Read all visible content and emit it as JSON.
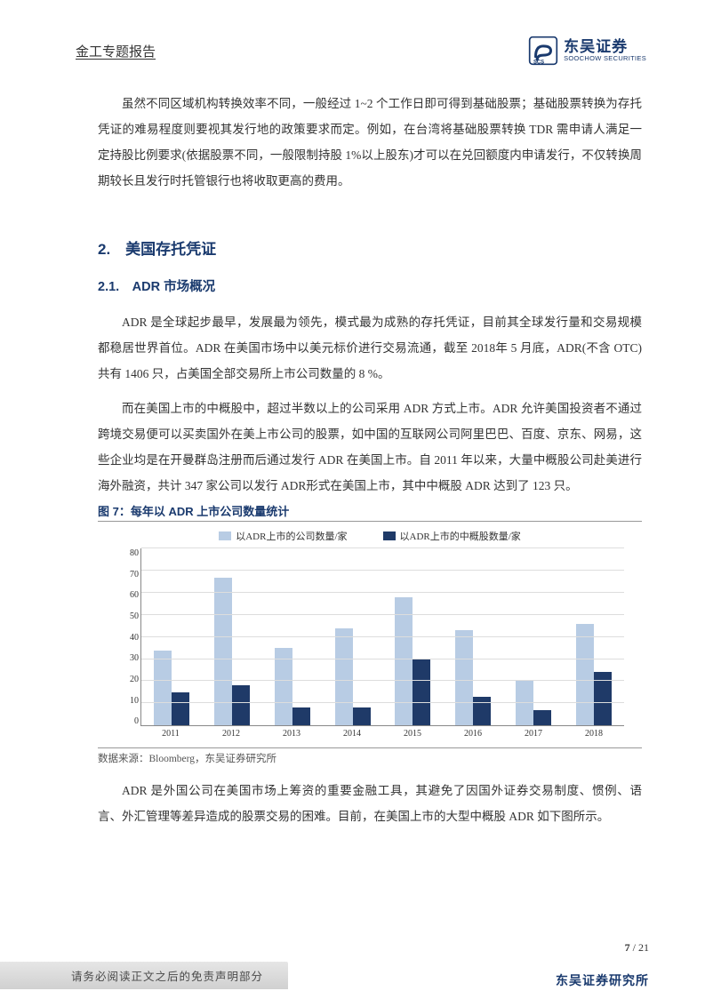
{
  "header": {
    "title": "金工专题报告",
    "logo_cn": "东吴证券",
    "logo_en": "SOOCHOW SECURITIES"
  },
  "para1": "虽然不同区域机构转换效率不同，一般经过 1~2 个工作日即可得到基础股票；基础股票转换为存托凭证的难易程度则要视其发行地的政策要求而定。例如，在台湾将基础股票转换 TDR 需申请人满足一定持股比例要求(依据股票不同，一般限制持股 1%以上股东)才可以在兑回额度内申请发行，不仅转换周期较长且发行时托管银行也将收取更高的费用。",
  "h2": "2.　美国存托凭证",
  "h3": "2.1.　ADR 市场概况",
  "para2": "ADR 是全球起步最早，发展最为领先，模式最为成熟的存托凭证，目前其全球发行量和交易规模都稳居世界首位。ADR 在美国市场中以美元标价进行交易流通，截至 2018年 5 月底，ADR(不含 OTC)共有 1406 只，占美国全部交易所上市公司数量的 8 %。",
  "para3": "而在美国上市的中概股中，超过半数以上的公司采用 ADR 方式上市。ADR 允许美国投资者不通过跨境交易便可以买卖国外在美上市公司的股票，如中国的互联网公司阿里巴巴、百度、京东、网易，这些企业均是在开曼群岛注册而后通过发行 ADR 在美国上市。自 2011 年以来，大量中概股公司赴美进行海外融资，共计 347 家公司以发行 ADR形式在美国上市，其中中概股 ADR 达到了 123 只。",
  "chart": {
    "title": "图 7：每年以 ADR 上市公司数量统计",
    "legend_series1": "以ADR上市的公司数量/家",
    "legend_series2": "以ADR上市的中概股数量/家",
    "color_series1": "#b8cce4",
    "color_series2": "#1f3a68",
    "grid_color": "#dddddd",
    "axis_color": "#888888",
    "ylim_max": 80,
    "ytick_step": 10,
    "yticks": [
      "0",
      "10",
      "20",
      "30",
      "40",
      "50",
      "60",
      "70",
      "80"
    ],
    "categories": [
      "2011",
      "2012",
      "2013",
      "2014",
      "2015",
      "2016",
      "2017",
      "2018"
    ],
    "series1_values": [
      34,
      67,
      35,
      44,
      58,
      43,
      20,
      46
    ],
    "series2_values": [
      15,
      18,
      8,
      8,
      30,
      13,
      7,
      24
    ],
    "source": "数据来源：Bloomberg，东吴证券研究所"
  },
  "para4": "ADR 是外国公司在美国市场上筹资的重要金融工具，其避免了因国外证券交易制度、惯例、语言、外汇管理等差异造成的股票交易的困难。目前，在美国上市的大型中概股 ADR 如下图所示。",
  "footer": {
    "page_current": "7",
    "page_total": "21",
    "disclaimer": "请务必阅读正文之后的免责声明部分",
    "org": "东吴证券研究所"
  }
}
